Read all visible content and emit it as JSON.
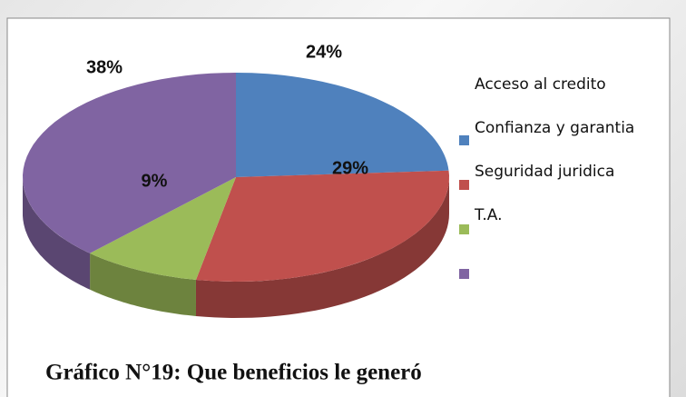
{
  "chart_data": {
    "type": "pie3d",
    "title": "Gráfico N°19: Que beneficios le generó",
    "categories": [
      "Acceso al credito",
      "Confianza y garantia",
      "Seguridad juridica",
      "T.A."
    ],
    "values": [
      24,
      29,
      9,
      38
    ],
    "value_labels": [
      "24%",
      "29%",
      "9%",
      "38%"
    ],
    "colors": [
      "#4f81bd",
      "#c0504d",
      "#9bbb59",
      "#8064a2"
    ]
  }
}
